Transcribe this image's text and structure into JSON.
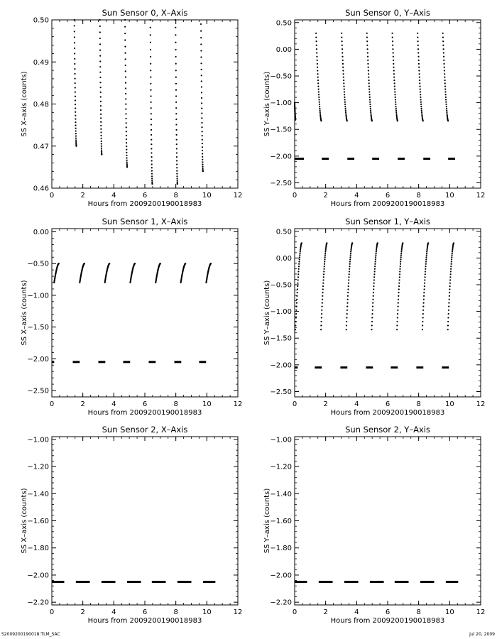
{
  "footer": {
    "left": "S2009200190018:TLM_SAC",
    "right": "Jul 20, 2009"
  },
  "chart_data": [
    {
      "type": "scatter",
      "title": "Sun Sensor 0, X–Axis",
      "xlabel": "Hours from  2009200190018983",
      "ylabel": "SS X–axis (counts)",
      "xlim": [
        0,
        12
      ],
      "ylim": [
        0.46,
        0.5
      ],
      "xticks": [
        0,
        2,
        4,
        6,
        8,
        10,
        12
      ],
      "yticks": [
        0.46,
        0.47,
        0.48,
        0.49,
        0.5
      ],
      "ytick_decimals": 2,
      "series": [
        {
          "segments": [
            {
              "x": [
                1.45,
                1.58
              ],
              "y": [
                0.5,
                0.47
              ]
            },
            {
              "x": [
                3.1,
                3.22
              ],
              "y": [
                0.5,
                0.468
              ]
            },
            {
              "x": [
                4.72,
                4.86
              ],
              "y": [
                0.5,
                0.465
              ]
            },
            {
              "x": [
                6.35,
                6.48
              ],
              "y": [
                0.5,
                0.461
              ]
            },
            {
              "x": [
                7.98,
                8.1
              ],
              "y": [
                0.5,
                0.461
              ]
            },
            {
              "x": [
                9.62,
                9.75
              ],
              "y": [
                0.499,
                0.464
              ]
            }
          ]
        }
      ]
    },
    {
      "type": "scatter",
      "title": "Sun Sensor 0, Y–Axis",
      "xlabel": "Hours from  2009200190018983",
      "ylabel": "SS Y–axis (counts)",
      "xlim": [
        0,
        12
      ],
      "ylim": [
        -2.6,
        0.55
      ],
      "xticks": [
        0,
        2,
        4,
        6,
        8,
        10,
        12
      ],
      "yticks": [
        -2.5,
        -2.0,
        -1.5,
        -1.0,
        -0.5,
        0.0,
        0.5
      ],
      "ytick_decimals": 2,
      "series": [
        {
          "segments": [
            {
              "x": [
                0.0,
                0.05
              ],
              "y": [
                -1.0,
                -1.32
              ]
            },
            {
              "x": [
                1.38,
                1.72
              ],
              "y": [
                0.3,
                -1.34
              ]
            },
            {
              "x": [
                3.03,
                3.38
              ],
              "y": [
                0.3,
                -1.34
              ]
            },
            {
              "x": [
                4.66,
                4.99
              ],
              "y": [
                0.3,
                -1.34
              ]
            },
            {
              "x": [
                6.3,
                6.64
              ],
              "y": [
                0.3,
                -1.34
              ]
            },
            {
              "x": [
                7.93,
                8.28
              ],
              "y": [
                0.3,
                -1.34
              ]
            },
            {
              "x": [
                9.56,
                9.9
              ],
              "y": [
                0.3,
                -1.34
              ]
            }
          ]
        },
        {
          "level": -2.05,
          "dashes": [
            [
              0.0,
              0.6
            ],
            [
              1.75,
              2.2
            ],
            [
              3.4,
              3.85
            ],
            [
              5.0,
              5.45
            ],
            [
              6.65,
              7.1
            ],
            [
              8.3,
              8.75
            ],
            [
              9.9,
              10.35
            ]
          ]
        }
      ]
    },
    {
      "type": "scatter",
      "title": "Sun Sensor 1, X–Axis",
      "xlabel": "Hours from  2009200190018983",
      "ylabel": "SS X–axis (counts)",
      "xlim": [
        0,
        12
      ],
      "ylim": [
        -2.6,
        0.05
      ],
      "xticks": [
        0,
        2,
        4,
        6,
        8,
        10,
        12
      ],
      "yticks": [
        -2.5,
        -2.0,
        -1.5,
        -1.0,
        -0.5,
        0.0
      ],
      "ytick_decimals": 2,
      "series": [
        {
          "segments": [
            {
              "x": [
                0.15,
                0.45
              ],
              "y": [
                -0.8,
                -0.5
              ]
            },
            {
              "x": [
                1.8,
                2.1
              ],
              "y": [
                -0.8,
                -0.5
              ]
            },
            {
              "x": [
                3.42,
                3.72
              ],
              "y": [
                -0.8,
                -0.5
              ]
            },
            {
              "x": [
                5.06,
                5.36
              ],
              "y": [
                -0.8,
                -0.5
              ]
            },
            {
              "x": [
                6.7,
                7.0
              ],
              "y": [
                -0.8,
                -0.5
              ]
            },
            {
              "x": [
                8.32,
                8.62
              ],
              "y": [
                -0.8,
                -0.5
              ]
            },
            {
              "x": [
                9.96,
                10.26
              ],
              "y": [
                -0.8,
                -0.5
              ]
            }
          ]
        },
        {
          "level": -2.05,
          "dashes": [
            [
              0.0,
              0.15
            ],
            [
              1.35,
              1.8
            ],
            [
              3.0,
              3.45
            ],
            [
              4.6,
              5.05
            ],
            [
              6.25,
              6.7
            ],
            [
              7.9,
              8.35
            ],
            [
              9.5,
              9.95
            ]
          ]
        }
      ]
    },
    {
      "type": "scatter",
      "title": "Sun Sensor 1, Y–Axis",
      "xlabel": "Hours from  2009200190018983",
      "ylabel": "SS Y–axis (counts)",
      "xlim": [
        0,
        12
      ],
      "ylim": [
        -2.6,
        0.55
      ],
      "xticks": [
        0,
        2,
        4,
        6,
        8,
        10,
        12
      ],
      "yticks": [
        -2.5,
        -2.0,
        -1.5,
        -1.0,
        -0.5,
        0.0,
        0.5
      ],
      "ytick_decimals": 2,
      "series": [
        {
          "segments": [
            {
              "x": [
                0.05,
                0.45
              ],
              "y": [
                -1.34,
                0.28
              ]
            },
            {
              "x": [
                1.7,
                2.08
              ],
              "y": [
                -1.34,
                0.28
              ]
            },
            {
              "x": [
                3.33,
                3.72
              ],
              "y": [
                -1.34,
                0.28
              ]
            },
            {
              "x": [
                4.97,
                5.35
              ],
              "y": [
                -1.34,
                0.28
              ]
            },
            {
              "x": [
                6.6,
                6.98
              ],
              "y": [
                -1.34,
                0.28
              ]
            },
            {
              "x": [
                8.24,
                8.62
              ],
              "y": [
                -1.34,
                0.28
              ]
            },
            {
              "x": [
                9.88,
                10.26
              ],
              "y": [
                -1.34,
                0.28
              ]
            }
          ]
        },
        {
          "level": -2.05,
          "dashes": [
            [
              0.0,
              0.2
            ],
            [
              1.3,
              1.75
            ],
            [
              2.95,
              3.4
            ],
            [
              4.6,
              5.05
            ],
            [
              6.2,
              6.65
            ],
            [
              7.85,
              8.3
            ],
            [
              9.5,
              9.95
            ]
          ]
        }
      ]
    },
    {
      "type": "scatter",
      "title": "Sun Sensor 2, X–Axis",
      "xlabel": "Hours from  2009200190018983",
      "ylabel": "SS X–axis (counts)",
      "xlim": [
        0,
        12
      ],
      "ylim": [
        -2.22,
        -0.98
      ],
      "xticks": [
        0,
        2,
        4,
        6,
        8,
        10,
        12
      ],
      "yticks": [
        -2.2,
        -2.0,
        -1.8,
        -1.6,
        -1.4,
        -1.2,
        -1.0
      ],
      "ytick_decimals": 2,
      "series": [
        {
          "level": -2.05,
          "dashes": [
            [
              0.0,
              0.8
            ],
            [
              1.55,
              2.45
            ],
            [
              3.2,
              4.1
            ],
            [
              4.85,
              5.75
            ],
            [
              6.45,
              7.35
            ],
            [
              8.1,
              9.0
            ],
            [
              9.75,
              10.55
            ]
          ]
        }
      ]
    },
    {
      "type": "scatter",
      "title": "Sun Sensor 2, Y–Axis",
      "xlabel": "Hours from  2009200190018983",
      "ylabel": "SS Y–axis (counts)",
      "xlim": [
        0,
        12
      ],
      "ylim": [
        -2.22,
        -0.98
      ],
      "xticks": [
        0,
        2,
        4,
        6,
        8,
        10,
        12
      ],
      "yticks": [
        -2.2,
        -2.0,
        -1.8,
        -1.6,
        -1.4,
        -1.2,
        -1.0
      ],
      "ytick_decimals": 2,
      "series": [
        {
          "level": -2.05,
          "dashes": [
            [
              0.0,
              0.8
            ],
            [
              1.55,
              2.45
            ],
            [
              3.2,
              4.1
            ],
            [
              4.85,
              5.75
            ],
            [
              6.45,
              7.35
            ],
            [
              8.1,
              9.0
            ],
            [
              9.75,
              10.55
            ]
          ]
        }
      ]
    }
  ]
}
